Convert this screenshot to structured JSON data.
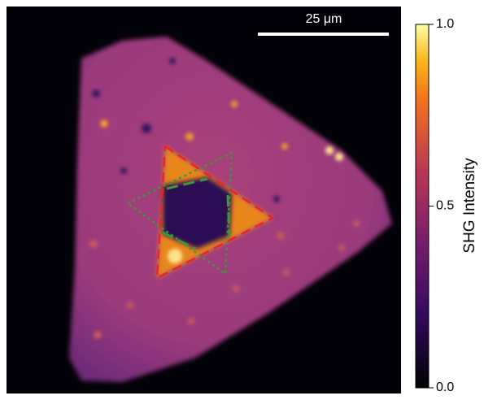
{
  "scale_bar": {
    "label": "25 μm"
  },
  "colorbar": {
    "label": "SHG Intensity",
    "lim": [
      0,
      1
    ],
    "ticks": [
      {
        "value": 0,
        "label": "0.0"
      },
      {
        "value": 0.5,
        "label": "0.5"
      },
      {
        "value": 1,
        "label": "1.0"
      }
    ]
  }
}
